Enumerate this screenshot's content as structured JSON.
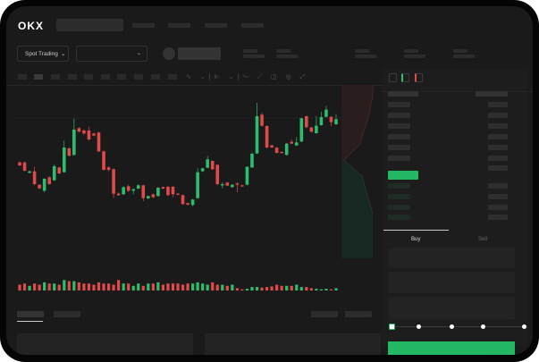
{
  "header": {
    "logo": "OKX"
  },
  "market": {
    "mode_label": "Spot Trading",
    "mode_icon": "chevron-down-icon",
    "pair_icon": "chevron-down-icon"
  },
  "trade": {
    "tabs": [
      {
        "label": "Buy",
        "active": true
      },
      {
        "label": "Sell",
        "active": false
      }
    ],
    "slider_steps": [
      0,
      25,
      50,
      75,
      100
    ],
    "slider_value": 0
  },
  "colors": {
    "up": "#2dbd6e",
    "down": "#e04a4a",
    "background": "#1a1a1a",
    "button": "#25b864"
  },
  "chart_data": {
    "type": "candlestick",
    "ylim": [
      10,
      400
    ],
    "ohlc": [
      [
        185,
        188,
        172,
        175
      ],
      [
        185,
        187,
        155,
        157
      ],
      [
        150,
        157,
        148,
        155
      ],
      [
        155,
        170,
        108,
        112
      ],
      [
        110,
        112,
        95,
        98
      ],
      [
        90,
        132,
        85,
        130
      ],
      [
        135,
        138,
        110,
        112
      ],
      [
        125,
        178,
        122,
        172
      ],
      [
        168,
        170,
        145,
        148
      ],
      [
        152,
        258,
        150,
        235
      ],
      [
        232,
        236,
        205,
        207
      ],
      [
        210,
        332,
        208,
        295
      ],
      [
        300,
        303,
        286,
        288
      ],
      [
        292,
        296,
        278,
        282
      ],
      [
        292,
        305,
        258,
        262
      ],
      [
        282,
        284,
        273,
        275
      ],
      [
        285,
        288,
        220,
        222
      ],
      [
        222,
        225,
        158,
        160
      ],
      [
        168,
        172,
        155,
        160
      ],
      [
        162,
        165,
        65,
        80
      ],
      [
        80,
        84,
        73,
        75
      ],
      [
        78,
        105,
        76,
        102
      ],
      [
        105,
        110,
        85,
        90
      ],
      [
        90,
        98,
        78,
        95
      ],
      [
        97,
        112,
        95,
        108
      ],
      [
        108,
        110,
        55,
        65
      ],
      [
        64,
        74,
        62,
        72
      ],
      [
        78,
        80,
        65,
        68
      ],
      [
        72,
        102,
        70,
        100
      ],
      [
        102,
        104,
        95,
        97
      ],
      [
        103,
        106,
        72,
        75
      ],
      [
        103,
        106,
        68,
        78
      ],
      [
        80,
        82,
        75,
        77
      ],
      [
        75,
        77,
        43,
        45
      ],
      [
        48,
        50,
        42,
        43
      ],
      [
        42,
        62,
        38,
        60
      ],
      [
        65,
        165,
        62,
        152
      ],
      [
        155,
        167,
        153,
        165
      ],
      [
        167,
        207,
        165,
        195
      ],
      [
        190,
        192,
        160,
        162
      ],
      [
        177,
        179,
        108,
        112
      ],
      [
        108,
        118,
        98,
        112
      ],
      [
        117,
        119,
        105,
        107
      ],
      [
        102,
        112,
        100,
        110
      ],
      [
        114,
        118,
        85,
        110
      ],
      [
        108,
        110,
        103,
        105
      ],
      [
        110,
        172,
        108,
        170
      ],
      [
        168,
        218,
        166,
        214
      ],
      [
        215,
        385,
        213,
        340
      ],
      [
        345,
        352,
        305,
        308
      ],
      [
        307,
        309,
        232,
        235
      ],
      [
        242,
        244,
        233,
        235
      ],
      [
        234,
        236,
        215,
        217
      ],
      [
        220,
        222,
        215,
        217
      ],
      [
        210,
        250,
        208,
        248
      ],
      [
        254,
        262,
        246,
        248
      ],
      [
        242,
        270,
        240,
        252
      ],
      [
        255,
        335,
        253,
        333
      ],
      [
        340,
        342,
        300,
        303
      ],
      [
        302,
        304,
        285,
        288
      ],
      [
        283,
        340,
        281,
        308
      ],
      [
        310,
        355,
        308,
        337
      ],
      [
        338,
        375,
        336,
        362
      ],
      [
        338,
        340,
        307,
        320
      ],
      [
        313,
        347,
        311,
        330
      ]
    ],
    "volume": [
      5,
      6,
      4,
      6,
      5,
      7,
      6,
      6,
      5,
      9,
      8,
      8,
      7,
      6,
      6,
      5,
      7,
      6,
      6,
      5,
      9,
      6,
      6,
      4,
      6,
      4,
      6,
      6,
      7,
      5,
      6,
      6,
      6,
      5,
      6,
      6,
      7,
      6,
      5,
      7,
      5,
      5,
      4,
      5,
      2,
      1,
      1.5,
      3,
      3,
      2.5,
      3,
      3.5,
      5,
      4,
      4,
      4,
      5,
      3,
      3,
      2,
      1.5,
      1,
      1.5,
      1,
      2
    ]
  }
}
